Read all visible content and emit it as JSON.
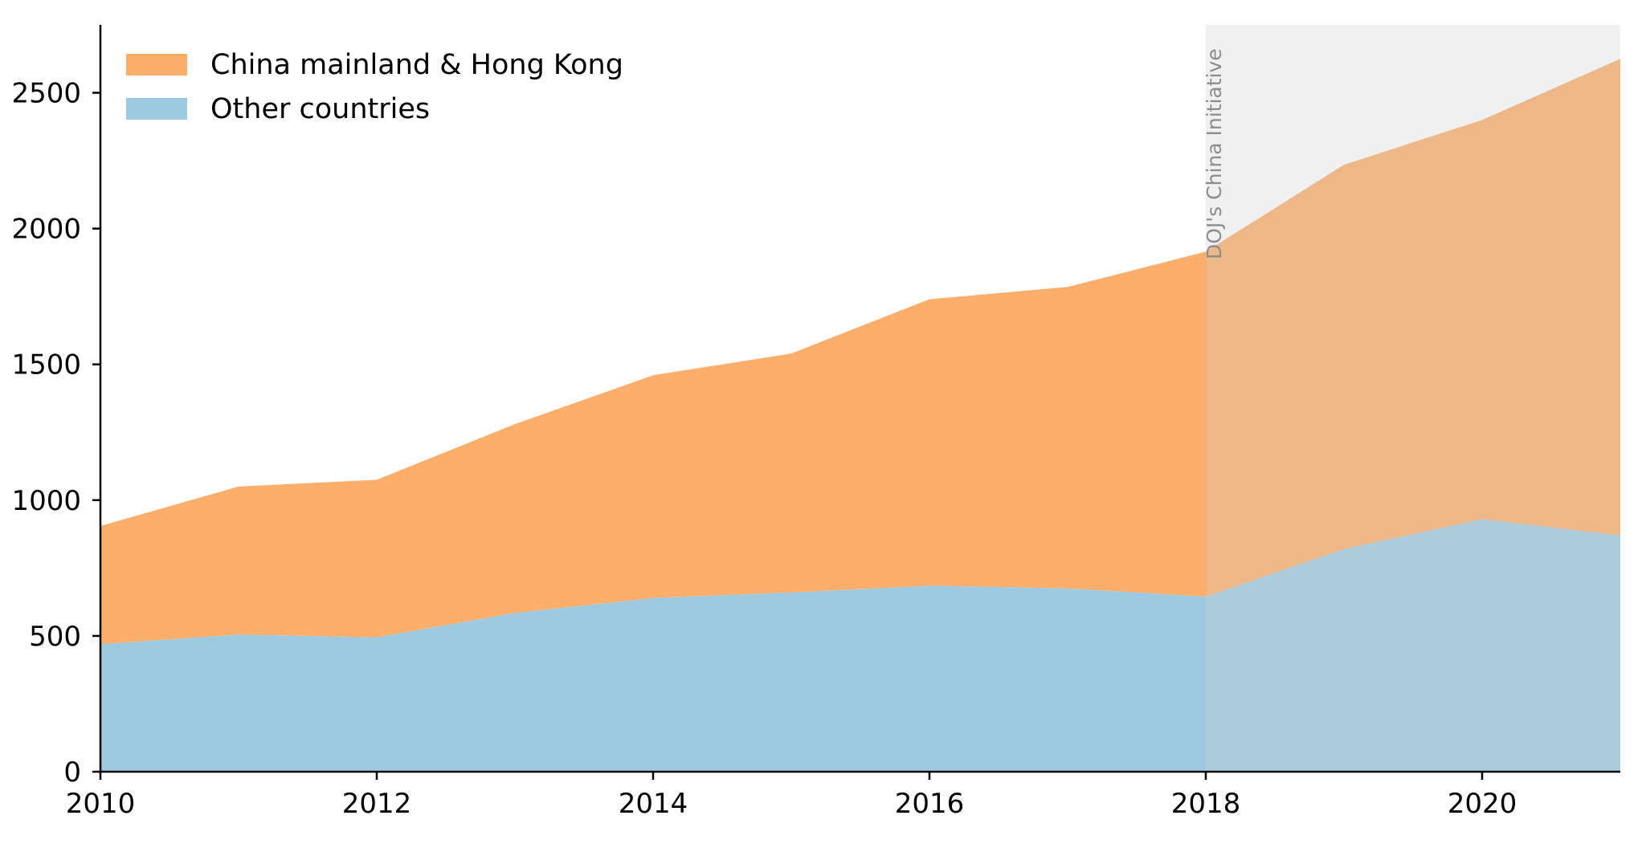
{
  "chart_data": {
    "type": "area",
    "stacked": true,
    "x": [
      2010,
      2011,
      2012,
      2013,
      2014,
      2015,
      2016,
      2017,
      2018,
      2019,
      2020,
      2021
    ],
    "series": [
      {
        "name": "Other countries",
        "color": "#9ecae1",
        "values": [
          470,
          505,
          495,
          585,
          640,
          660,
          685,
          675,
          645,
          820,
          930,
          870
        ]
      },
      {
        "name": "China mainland & Hong Kong",
        "color": "#fdae6b",
        "values": [
          435,
          545,
          580,
          695,
          820,
          880,
          1055,
          1110,
          1270,
          1415,
          1470,
          1755
        ]
      }
    ],
    "xlim": [
      2010,
      2021
    ],
    "ylim": [
      0,
      2750
    ],
    "xticks": [
      2010,
      2012,
      2014,
      2016,
      2018,
      2020
    ],
    "yticks": [
      0,
      500,
      1000,
      1500,
      2000,
      2500
    ],
    "xtick_labels": [
      "2010",
      "2012",
      "2014",
      "2016",
      "2018",
      "2020"
    ],
    "ytick_labels": [
      "0",
      "500",
      "1000",
      "1500",
      "2000",
      "2500"
    ],
    "legend": {
      "placement": "top-left",
      "entries": [
        "China mainland & Hong Kong",
        "Other countries"
      ]
    },
    "shaded_region": {
      "x_start": 2018,
      "x_end": 2021,
      "color": "#cccccc"
    },
    "annotation": {
      "text": "DOJ's China Initiative",
      "x": 2018
    },
    "grid": false
  }
}
